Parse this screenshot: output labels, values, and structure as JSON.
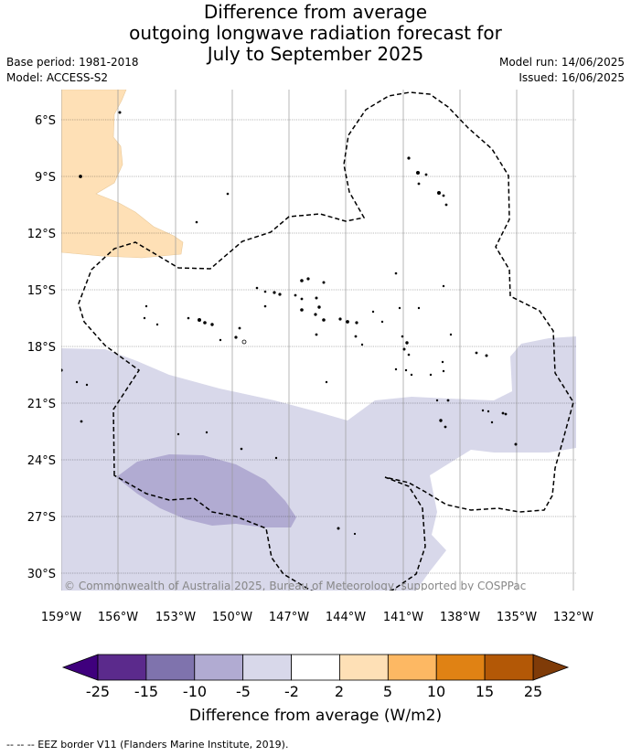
{
  "title": {
    "line1": "Difference from average",
    "line2": "outgoing longwave radiation forecast for",
    "line3": "July to September 2025"
  },
  "meta": {
    "base_period": "Base period: 1981-2018",
    "model": "Model: ACCESS-S2",
    "model_run": "Model run: 14/06/2025",
    "issued": "Issued: 16/06/2025"
  },
  "map": {
    "lon_ticks": [
      "159°W",
      "156°W",
      "153°W",
      "150°W",
      "147°W",
      "144°W",
      "141°W",
      "138°W",
      "135°W",
      "132°W"
    ],
    "lat_ticks": [
      "6°S",
      "9°S",
      "12°S",
      "15°S",
      "18°S",
      "21°S",
      "24°S",
      "27°S",
      "30°S"
    ],
    "copyright": "© Commonwealth of Australia 2025, Bureau of Meteorology, supported by COSPPac",
    "colors": {
      "light_purple": "#d8d8ea",
      "mid_purple": "#b1abd2",
      "light_orange": "#fee0b6"
    }
  },
  "colorbar": {
    "ticks": [
      "-25",
      "-15",
      "-10",
      "-5",
      "-2",
      "2",
      "5",
      "10",
      "15",
      "25"
    ],
    "colors": [
      "#3f007d",
      "#5b2a8c",
      "#7f73ad",
      "#b1abd2",
      "#d8d8ea",
      "#ffffff",
      "#fee0b6",
      "#fdb863",
      "#e08214",
      "#b35806",
      "#7f3b08"
    ],
    "label": "Difference from average (W/m2)"
  },
  "footer": {
    "legend": "--  --  -- EEZ border V11 (Flanders Marine Institute, 2019)."
  }
}
